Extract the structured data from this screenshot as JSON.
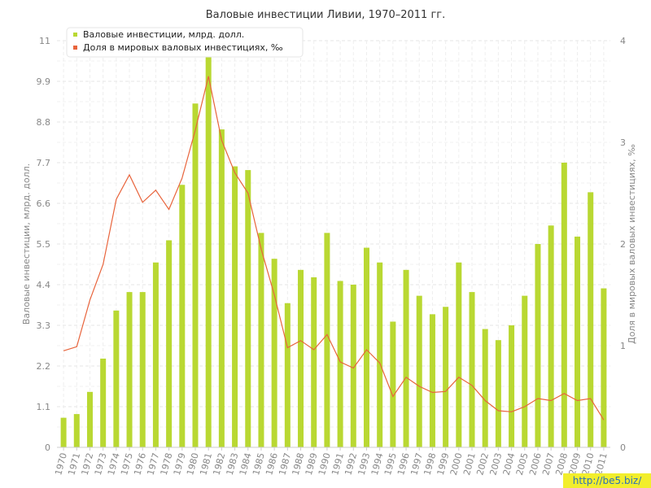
{
  "chart_data": {
    "type": "bar",
    "title": "Валовые инвестиции Ливии, 1970–2011 гг.",
    "ylabel_left": "Валовые инвестиции, млрд. долл.",
    "ylabel_right": "Доля в мировых валовых инвестициях, ‰",
    "ylim_left": [
      0,
      11
    ],
    "ylim_right": [
      0,
      4
    ],
    "yticks_left": [
      "0",
      "1.1",
      "2.2",
      "3.3",
      "4.4",
      "5.5",
      "6.6",
      "7.7",
      "8.8",
      "9.9",
      "11"
    ],
    "yticks_right": [
      "0",
      "1",
      "2",
      "3",
      "4"
    ],
    "grid": true,
    "legend_position": "top-left",
    "categories": [
      "1970",
      "1971",
      "1972",
      "1973",
      "1974",
      "1975",
      "1976",
      "1977",
      "1978",
      "1979",
      "1980",
      "1981",
      "1982",
      "1983",
      "1984",
      "1985",
      "1986",
      "1987",
      "1988",
      "1989",
      "1990",
      "1991",
      "1992",
      "1993",
      "1994",
      "1995",
      "1996",
      "1997",
      "1998",
      "1999",
      "2000",
      "2001",
      "2002",
      "2003",
      "2004",
      "2005",
      "2006",
      "2007",
      "2008",
      "2009",
      "2010",
      "2011"
    ],
    "series": [
      {
        "name": "Валовые инвестиции, млрд. долл.",
        "type": "bar",
        "axis": "left",
        "color": "#b9d832",
        "values": [
          0.8,
          0.9,
          1.5,
          2.4,
          3.7,
          4.2,
          4.2,
          5.0,
          5.6,
          7.1,
          9.3,
          10.8,
          8.6,
          7.6,
          7.5,
          5.8,
          5.1,
          3.9,
          4.8,
          4.6,
          5.8,
          4.5,
          4.4,
          5.4,
          5.0,
          3.4,
          4.8,
          4.1,
          3.6,
          3.8,
          5.0,
          4.2,
          3.2,
          2.9,
          3.3,
          4.1,
          5.5,
          6.0,
          7.7,
          5.7,
          6.9,
          4.3
        ]
      },
      {
        "name": "Доля в мировых валовых инвестициях, ‰",
        "type": "line",
        "axis": "right",
        "color": "#e8643c",
        "values": [
          0.95,
          0.99,
          1.45,
          1.8,
          2.44,
          2.68,
          2.41,
          2.53,
          2.34,
          2.65,
          3.12,
          3.65,
          3.02,
          2.7,
          2.5,
          1.95,
          1.5,
          0.98,
          1.05,
          0.96,
          1.11,
          0.84,
          0.78,
          0.96,
          0.83,
          0.5,
          0.69,
          0.6,
          0.54,
          0.55,
          0.69,
          0.61,
          0.46,
          0.36,
          0.35,
          0.4,
          0.48,
          0.46,
          0.53,
          0.46,
          0.48,
          0.27
        ]
      }
    ]
  },
  "watermark": "http://be5.biz/"
}
